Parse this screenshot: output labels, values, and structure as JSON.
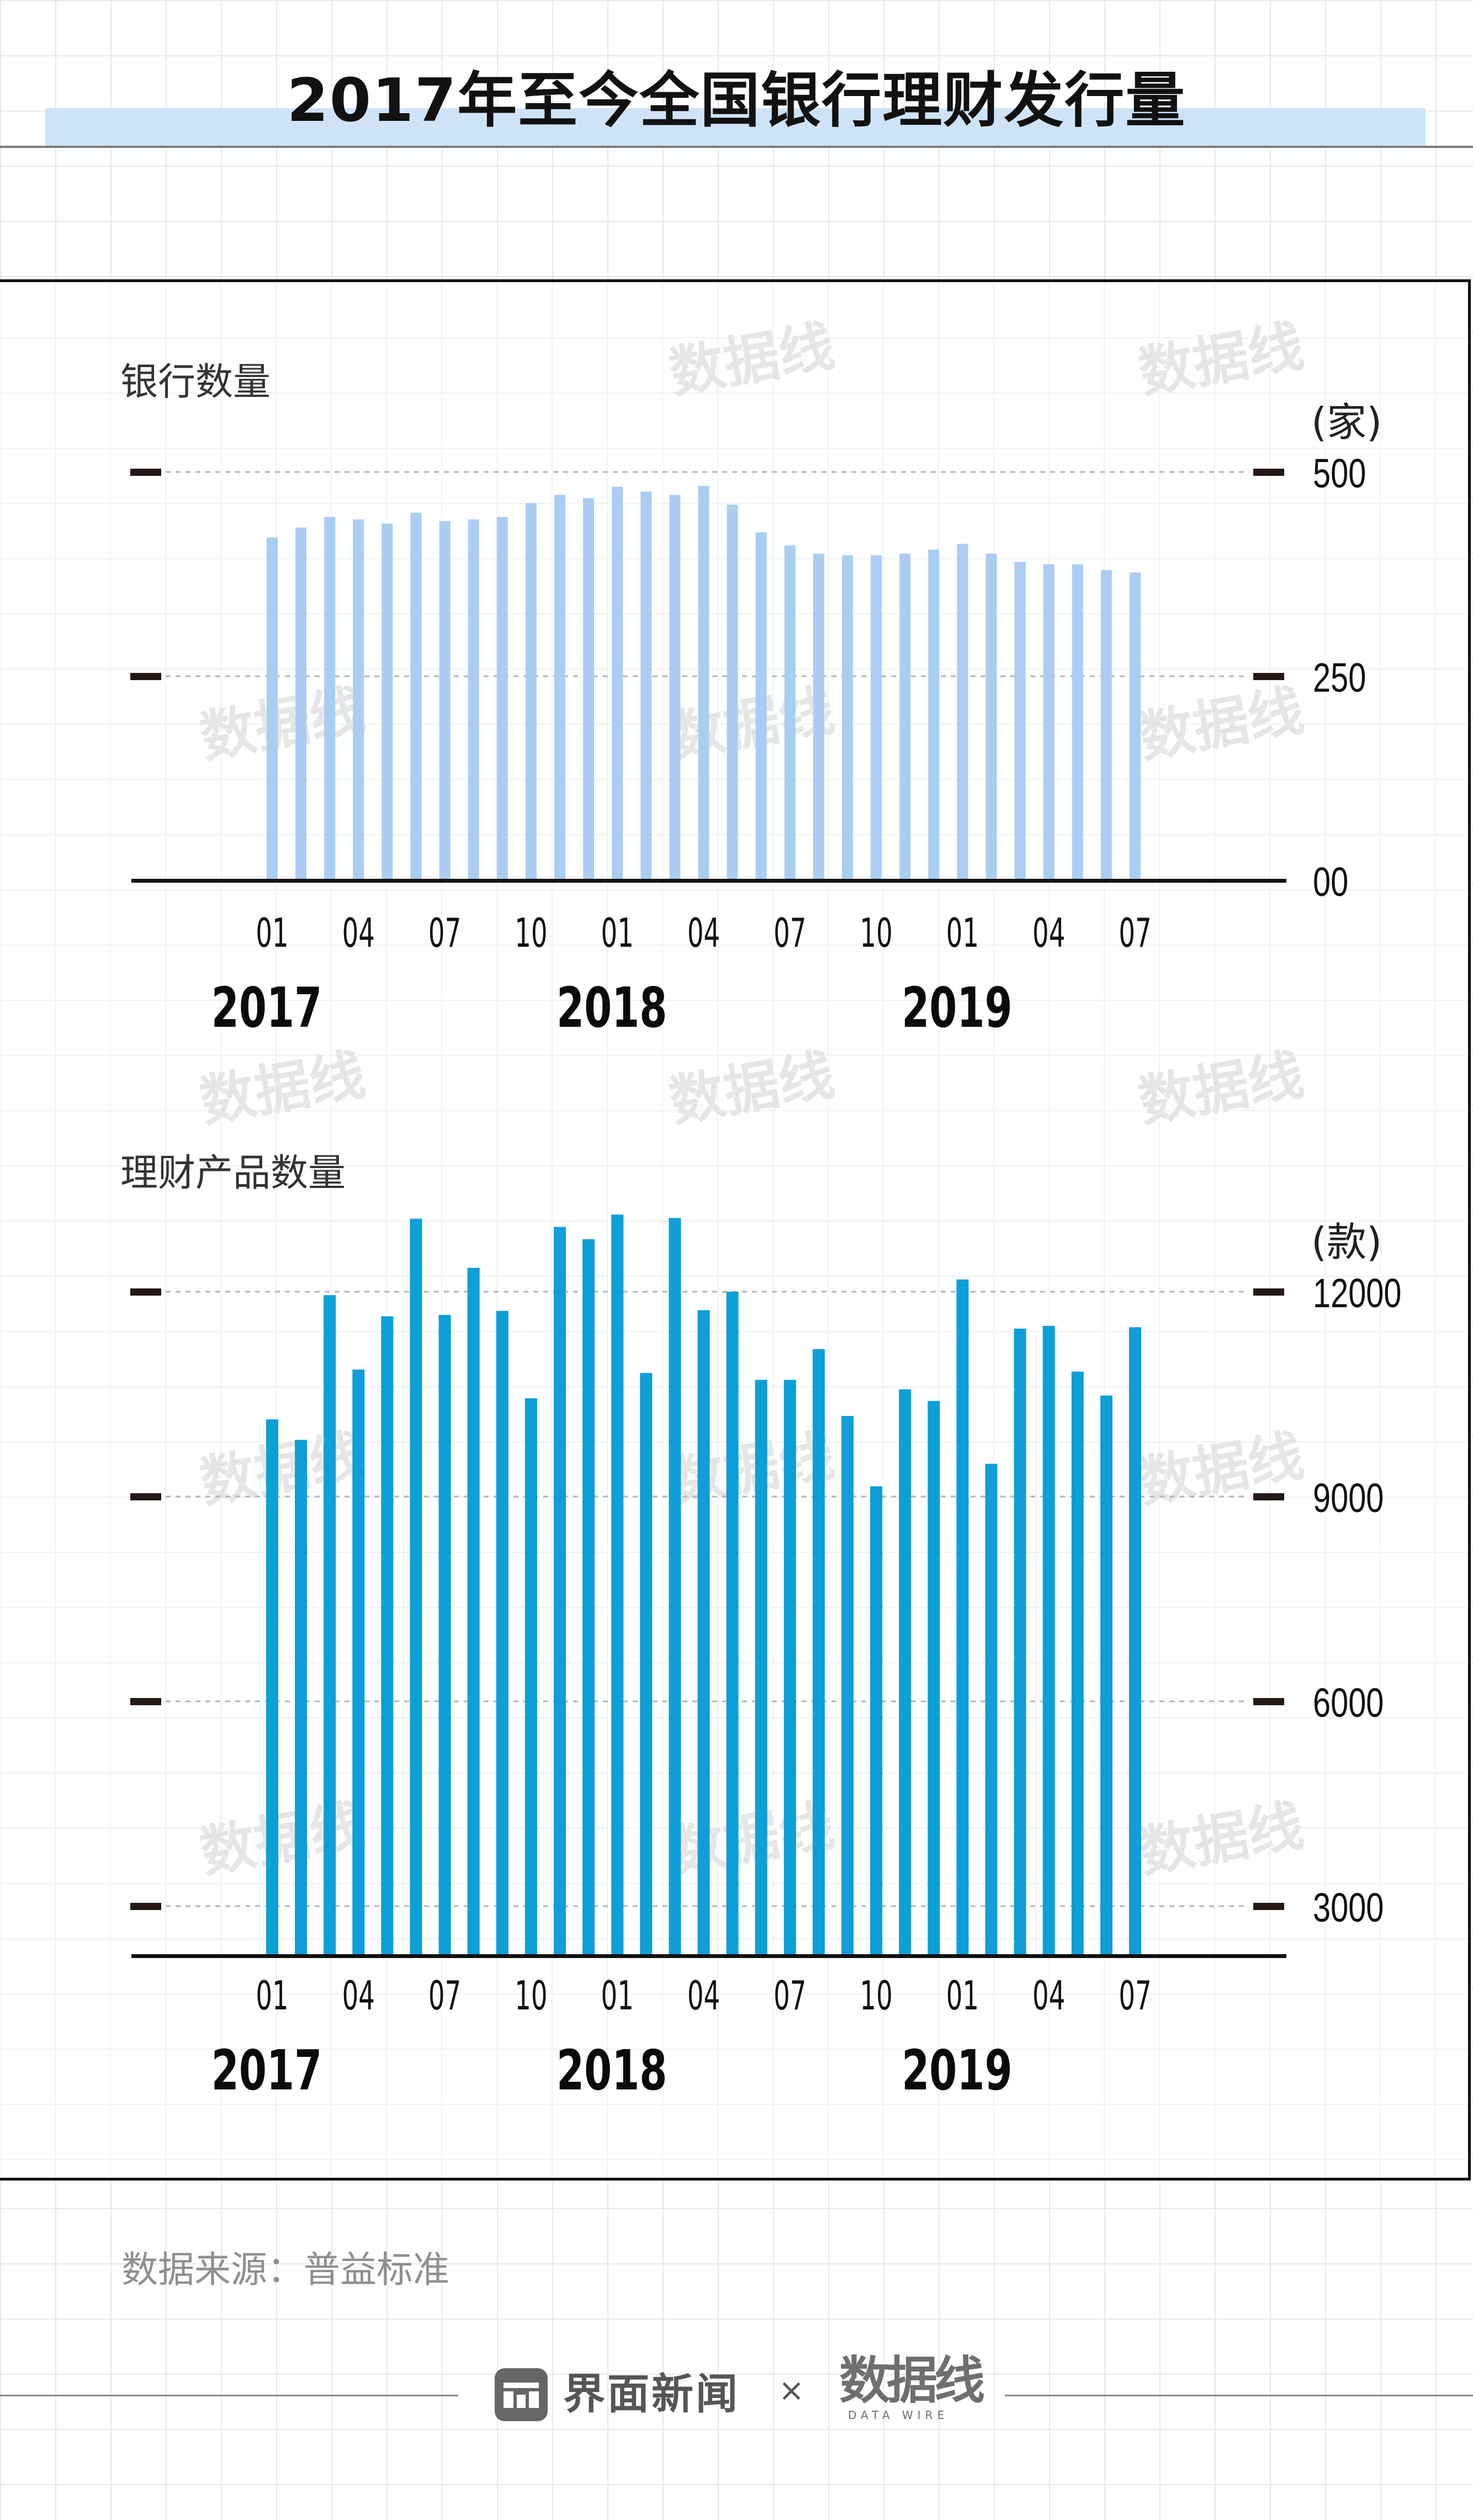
{
  "title": "2017年至今全国银行理财发行量",
  "source": "数据来源：普益标准",
  "footer": {
    "brand": "界面新闻",
    "separator": "×",
    "partner": "数据线",
    "partner_sub": "DATA WIRE"
  },
  "watermark_text": "数据线",
  "colors": {
    "bank_bar": "#aacdf2",
    "product_bar": "#0d9fd8",
    "title_band": "#cfe3f8",
    "axis": "#111111",
    "tick_mark": "#231815"
  },
  "chart_data": [
    {
      "type": "bar",
      "title": "银行数量",
      "unit": "(家)",
      "ylim": [
        0,
        500
      ],
      "yticks": [
        0,
        250,
        500
      ],
      "ytick_labels": [
        "00",
        "250",
        "500"
      ],
      "grid": true,
      "x_tick_labels": [
        "01",
        "04",
        "07",
        "10",
        "01",
        "04",
        "07",
        "10",
        "01",
        "04",
        "07"
      ],
      "x_tick_indices": [
        0,
        3,
        6,
        9,
        12,
        15,
        18,
        21,
        24,
        27,
        30
      ],
      "year_labels": [
        "2017",
        "2018",
        "2019"
      ],
      "year_indices": [
        0,
        12,
        24
      ],
      "categories": [
        "2017-01",
        "2017-02",
        "2017-03",
        "2017-04",
        "2017-05",
        "2017-06",
        "2017-07",
        "2017-08",
        "2017-09",
        "2017-10",
        "2017-11",
        "2017-12",
        "2018-01",
        "2018-02",
        "2018-03",
        "2018-04",
        "2018-05",
        "2018-06",
        "2018-07",
        "2018-08",
        "2018-09",
        "2018-10",
        "2018-11",
        "2018-12",
        "2019-01",
        "2019-02",
        "2019-03",
        "2019-04",
        "2019-05",
        "2019-06",
        "2019-07"
      ],
      "values": [
        420,
        432,
        445,
        442,
        437,
        450,
        440,
        442,
        445,
        462,
        472,
        468,
        482,
        476,
        472,
        483,
        460,
        426,
        410,
        400,
        398,
        398,
        400,
        405,
        412,
        400,
        390,
        387,
        387,
        380,
        377
      ]
    },
    {
      "type": "bar",
      "title": "理财产品数量",
      "unit": "(款)",
      "ylim": [
        2300,
        12800
      ],
      "yticks": [
        3000,
        6000,
        9000,
        12000
      ],
      "ytick_labels": [
        "3000",
        "6000",
        "9000",
        "12000"
      ],
      "grid": true,
      "x_tick_labels": [
        "01",
        "04",
        "07",
        "10",
        "01",
        "04",
        "07",
        "10",
        "01",
        "04",
        "07"
      ],
      "x_tick_indices": [
        0,
        3,
        6,
        9,
        12,
        15,
        18,
        21,
        24,
        27,
        30
      ],
      "year_labels": [
        "2017",
        "2018",
        "2019"
      ],
      "year_indices": [
        0,
        12,
        24
      ],
      "categories": [
        "2017-01",
        "2017-02",
        "2017-03",
        "2017-04",
        "2017-05",
        "2017-06",
        "2017-07",
        "2017-08",
        "2017-09",
        "2017-10",
        "2017-11",
        "2017-12",
        "2018-01",
        "2018-02",
        "2018-03",
        "2018-04",
        "2018-05",
        "2018-06",
        "2018-07",
        "2018-08",
        "2018-09",
        "2018-10",
        "2018-11",
        "2018-12",
        "2019-01",
        "2019-02",
        "2019-03",
        "2019-04",
        "2019-05",
        "2019-06",
        "2019-07"
      ],
      "values": [
        10130,
        9830,
        11950,
        10860,
        11640,
        13070,
        11660,
        12350,
        11720,
        10440,
        12950,
        12770,
        13130,
        10810,
        13080,
        11730,
        12000,
        10710,
        10710,
        11160,
        10180,
        9150,
        10570,
        10400,
        12180,
        9480,
        11460,
        11500,
        10830,
        10480,
        11480
      ]
    }
  ]
}
